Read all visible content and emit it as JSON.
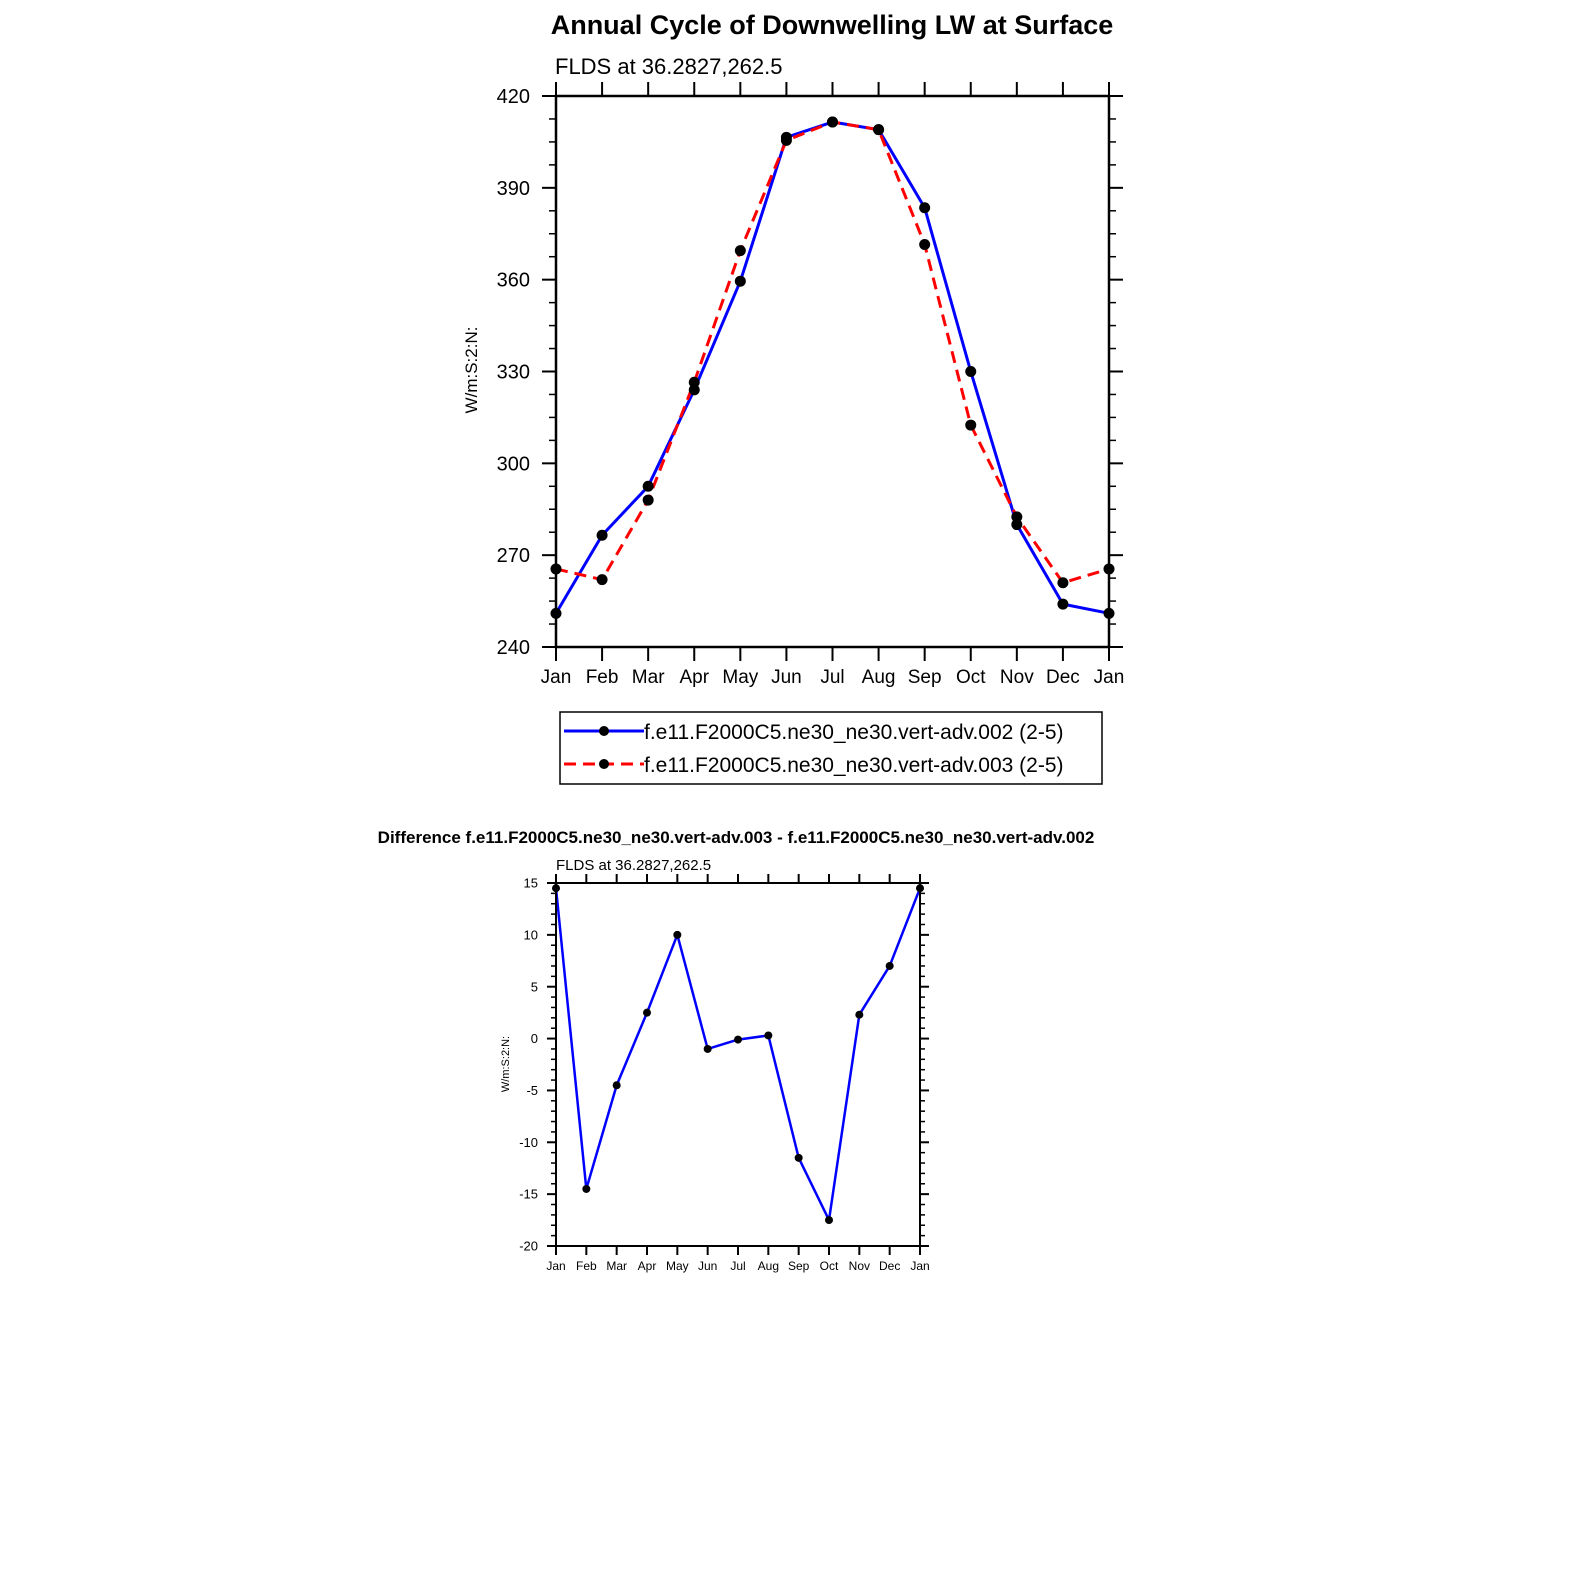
{
  "chart_data": [
    {
      "type": "line",
      "title": "Annual Cycle of Downwelling LW at Surface",
      "subtitle": "FLDS at 36.2827,262.5",
      "xlabel": "",
      "ylabel": "W/m:S:2:N:",
      "categories": [
        "Jan",
        "Feb",
        "Mar",
        "Apr",
        "May",
        "Jun",
        "Jul",
        "Aug",
        "Sep",
        "Oct",
        "Nov",
        "Dec",
        "Jan"
      ],
      "ylim": [
        240,
        420
      ],
      "yticks": [
        240,
        270,
        300,
        330,
        360,
        390,
        420
      ],
      "legend_position": "bottom",
      "grid": false,
      "series": [
        {
          "name": "f.e11.F2000C5.ne30_ne30.vert-adv.002 (2-5)",
          "color": "#0000ff",
          "dash": "solid",
          "values": [
            251,
            276.5,
            292.5,
            324,
            359.5,
            406.5,
            411.5,
            409,
            383.5,
            330,
            280,
            254,
            251
          ]
        },
        {
          "name": "f.e11.F2000C5.ne30_ne30.vert-adv.003 (2-5)",
          "color": "#ff0000",
          "dash": "dashed",
          "values": [
            265.5,
            262,
            288,
            326.5,
            369.5,
            405.5,
            411.5,
            409,
            371.5,
            312.5,
            282.5,
            261,
            265.5
          ]
        }
      ]
    },
    {
      "type": "line",
      "title": "Difference f.e11.F2000C5.ne30_ne30.vert-adv.003 - f.e11.F2000C5.ne30_ne30.vert-adv.002",
      "subtitle": "FLDS at 36.2827,262.5",
      "xlabel": "",
      "ylabel": "W/m:S:2:N:",
      "categories": [
        "Jan",
        "Feb",
        "Mar",
        "Apr",
        "May",
        "Jun",
        "Jul",
        "Aug",
        "Sep",
        "Oct",
        "Nov",
        "Dec",
        "Jan"
      ],
      "ylim": [
        -20,
        15
      ],
      "yticks": [
        -20,
        -15,
        -10,
        -5,
        0,
        5,
        10,
        15
      ],
      "grid": false,
      "series": [
        {
          "name": "",
          "color": "#0000ff",
          "dash": "solid",
          "values": [
            14.5,
            -14.5,
            -4.5,
            2.5,
            10,
            -1,
            -0.1,
            0.3,
            -11.5,
            -17.5,
            2.3,
            7,
            14.5
          ]
        }
      ]
    }
  ]
}
